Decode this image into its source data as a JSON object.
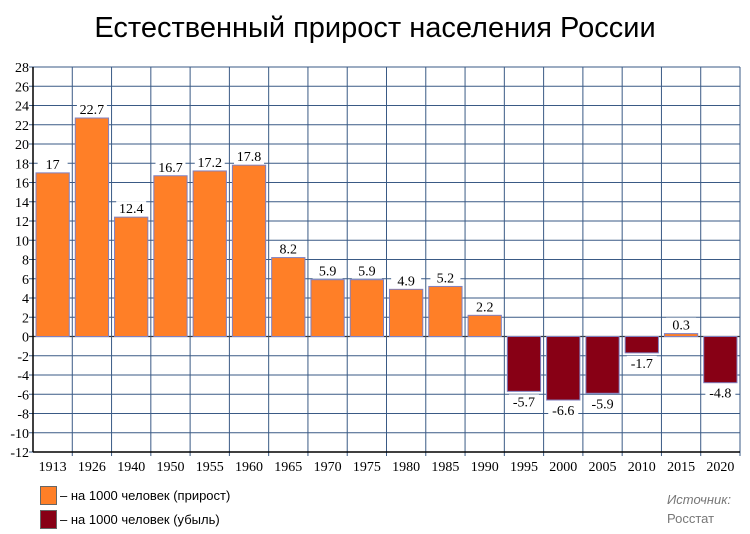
{
  "chart_data": {
    "type": "bar",
    "title": "Естественный прирост населения России",
    "categories": [
      "1913",
      "1926",
      "1940",
      "1950",
      "1955",
      "1960",
      "1965",
      "1970",
      "1975",
      "1980",
      "1985",
      "1990",
      "1995",
      "2000",
      "2005",
      "2010",
      "2015",
      "2020"
    ],
    "values": [
      17,
      22.7,
      12.4,
      16.7,
      17.2,
      17.8,
      8.2,
      5.9,
      5.9,
      4.9,
      5.2,
      2.2,
      -5.7,
      -6.6,
      -5.9,
      -1.7,
      0.3,
      -4.8
    ],
    "labels": [
      "17",
      "22.7",
      "12.4",
      "16.7",
      "17.2",
      "17.8",
      "8.2",
      "5.9",
      "5.9",
      "4.9",
      "5.2",
      "2.2",
      "-5.7",
      "-6.6",
      "-5.9",
      "-1.7",
      "0.3",
      "-4.8"
    ],
    "ylim": [
      -12,
      28
    ],
    "yticks": [
      "-12",
      "-10",
      "-8",
      "-6",
      "-4",
      "-2",
      "0",
      "2",
      "4",
      "6",
      "8",
      "10",
      "12",
      "14",
      "16",
      "18",
      "20",
      "22",
      "24",
      "26",
      "28"
    ],
    "grid": true,
    "legend": [
      {
        "label": "– на 1000 человек (прирост)",
        "color": "#ff7f27"
      },
      {
        "label": "– на 1000 человек (убыль)",
        "color": "#880015"
      }
    ],
    "source_label": "Источник:",
    "source": "Росстат"
  }
}
